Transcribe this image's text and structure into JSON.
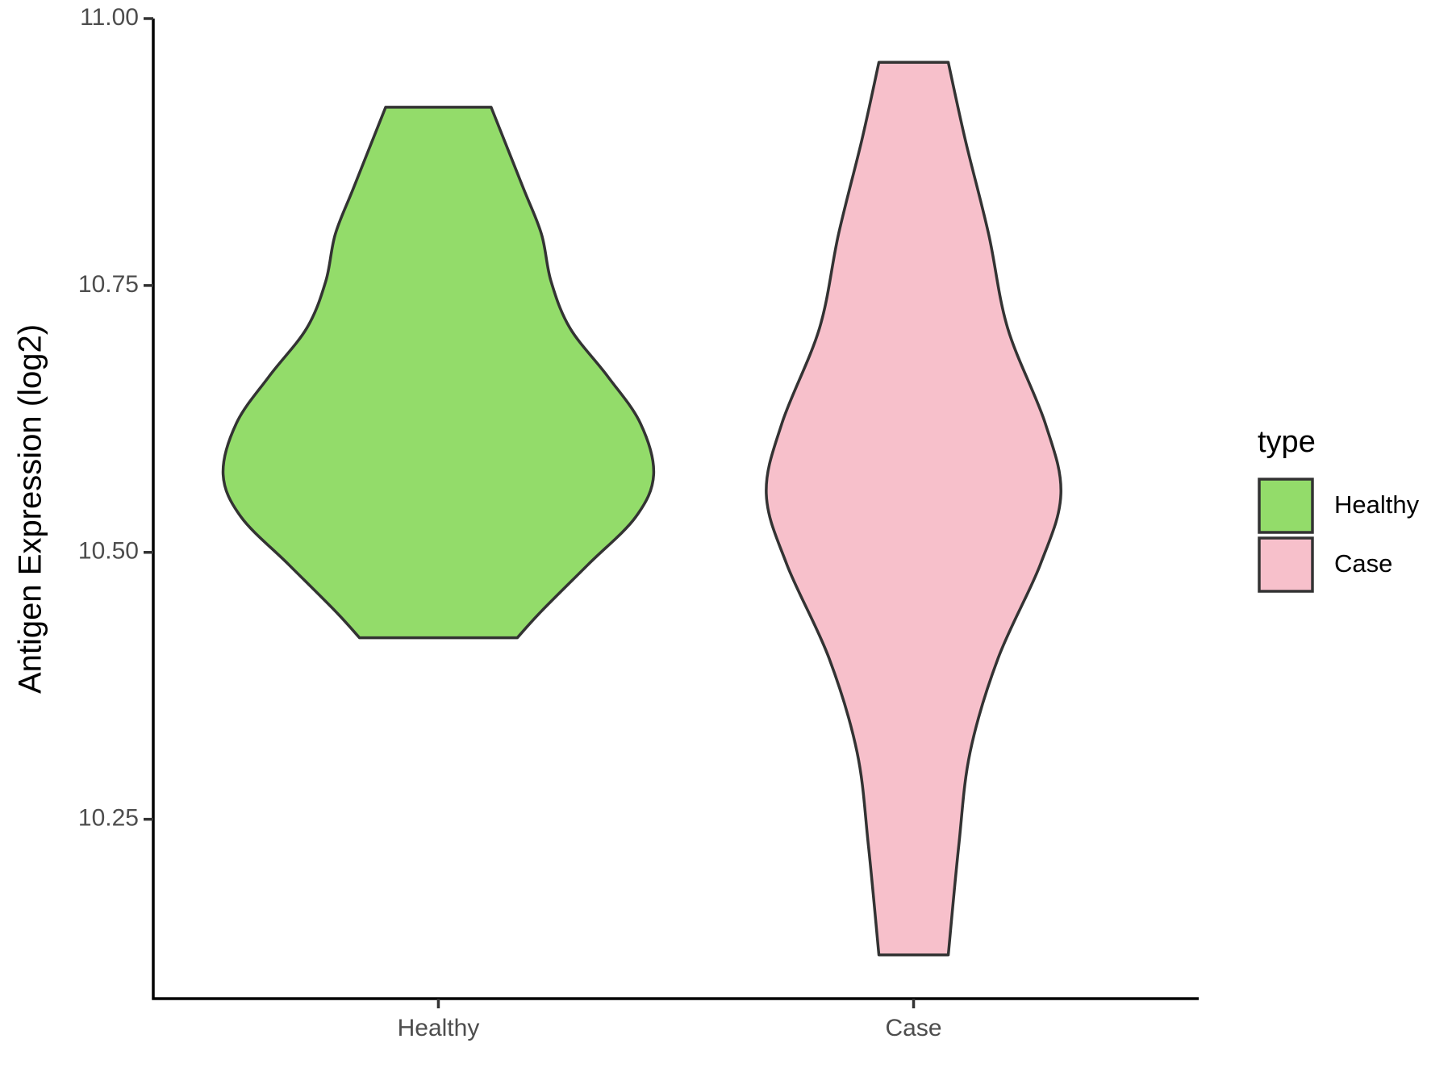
{
  "chart_data": {
    "type": "violin",
    "y_label": "Antigen Expression (log2)",
    "categories": [
      "Healthy",
      "Case"
    ],
    "legend_title": "type",
    "legend_position": "right",
    "ylim": [
      10.082,
      11.0
    ],
    "yticks": [
      {
        "value": 10.25,
        "label": "10.25"
      },
      {
        "value": 10.5,
        "label": "10.50"
      },
      10.75,
      {
        "value": 11,
        "label": "11.00"
      }
    ],
    "series": [
      {
        "name": "Healthy",
        "color": "#93dc6a",
        "y": [
          10.917,
          10.842,
          10.798,
          10.754,
          10.71,
          10.665,
          10.621,
          10.573,
          10.533,
          10.489,
          10.445,
          10.42
        ],
        "width": [
          0.111,
          0.178,
          0.217,
          0.237,
          0.277,
          0.356,
          0.425,
          0.453,
          0.415,
          0.316,
          0.217,
          0.166
        ]
      },
      {
        "name": "Case",
        "color": "#f7c0cb",
        "y": [
          10.959,
          10.886,
          10.798,
          10.71,
          10.621,
          10.555,
          10.489,
          10.401,
          10.313,
          10.225,
          10.123
        ],
        "width": [
          0.073,
          0.109,
          0.158,
          0.198,
          0.277,
          0.31,
          0.267,
          0.178,
          0.119,
          0.095,
          0.073
        ]
      }
    ]
  }
}
